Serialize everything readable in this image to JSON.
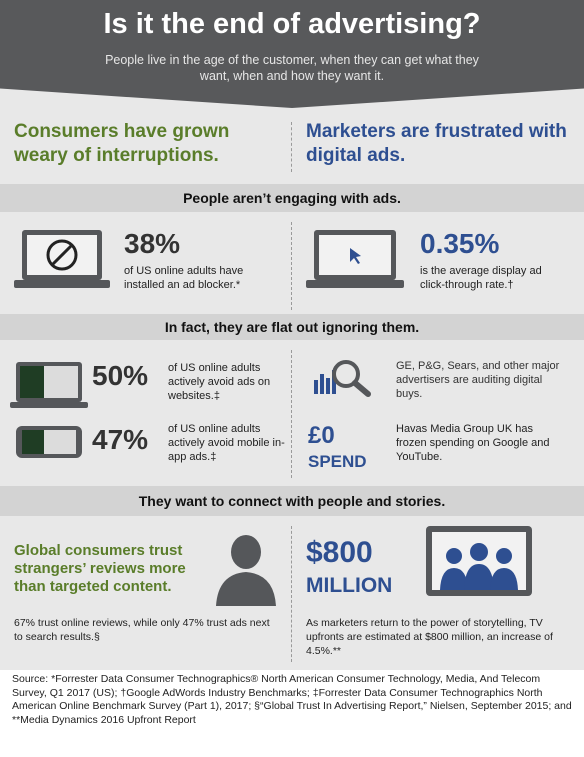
{
  "header": {
    "title": "Is it the end of advertising?",
    "subtitle": "People live in the age of the customer, when they can get what they want, when and how they want it."
  },
  "columns": {
    "left_heading": "Consumers have grown weary of interruptions.",
    "right_heading": "Marketers are frustrated with digital ads."
  },
  "bands": {
    "band1": "People aren’t engaging with ads.",
    "band2": "In fact, they are flat out ignoring them.",
    "band3": "They want to connect with people and stories."
  },
  "stats": {
    "adblock_pct": "38%",
    "adblock_text": "of US online adults have installed an ad blocker.*",
    "ctr_pct": "0.35%",
    "ctr_text": "is the average display ad click-through rate.†",
    "avoid_web_pct": "50%",
    "avoid_web_text": "of US online adults actively avoid ads on websites.‡",
    "avoid_mobile_pct": "47%",
    "avoid_mobile_text": "of US online adults actively avoid mobile in-app ads.‡",
    "audit_text": "GE, P&G, Sears, and other major advertisers are auditing digital buys.",
    "spend_amount": "£0",
    "spend_label": "SPEND",
    "spend_text": "Havas Media Group UK has frozen spending on Google and YouTube.",
    "trust_heading": "Global consumers trust strangers’ reviews more than targeted content.",
    "trust_text": "67% trust online reviews, while only 47% trust ads next to search results.§",
    "upfront_amount": "$800",
    "upfront_unit": "MILLION",
    "upfront_text": "As marketers return to the power of storytelling, TV upfronts are estimated at $800 million, an increase of 4.5%.**"
  },
  "source": "Source: *Forrester Data Consumer Technographics® North American Consumer Technology, Media, And Telecom Survey, Q1 2017 (US); †Google AdWords Industry Benchmarks; ‡Forrester Data Consumer Technographics North American Online Benchmark Survey (Part 1), 2017; §“Global Trust In Advertising Report,” Nielsen, September 2015; and **Media Dynamics 2016 Upfront Report",
  "colors": {
    "header": "#58595b",
    "green": "#5a7d2a",
    "blue": "#2e4f91",
    "band": "#d3d3d3"
  },
  "icons": [
    "laptop-blocked-icon",
    "laptop-cursor-icon",
    "laptop-avoid-icon",
    "phone-avoid-icon",
    "chart-magnifier-icon",
    "person-icon",
    "tv-people-icon"
  ]
}
